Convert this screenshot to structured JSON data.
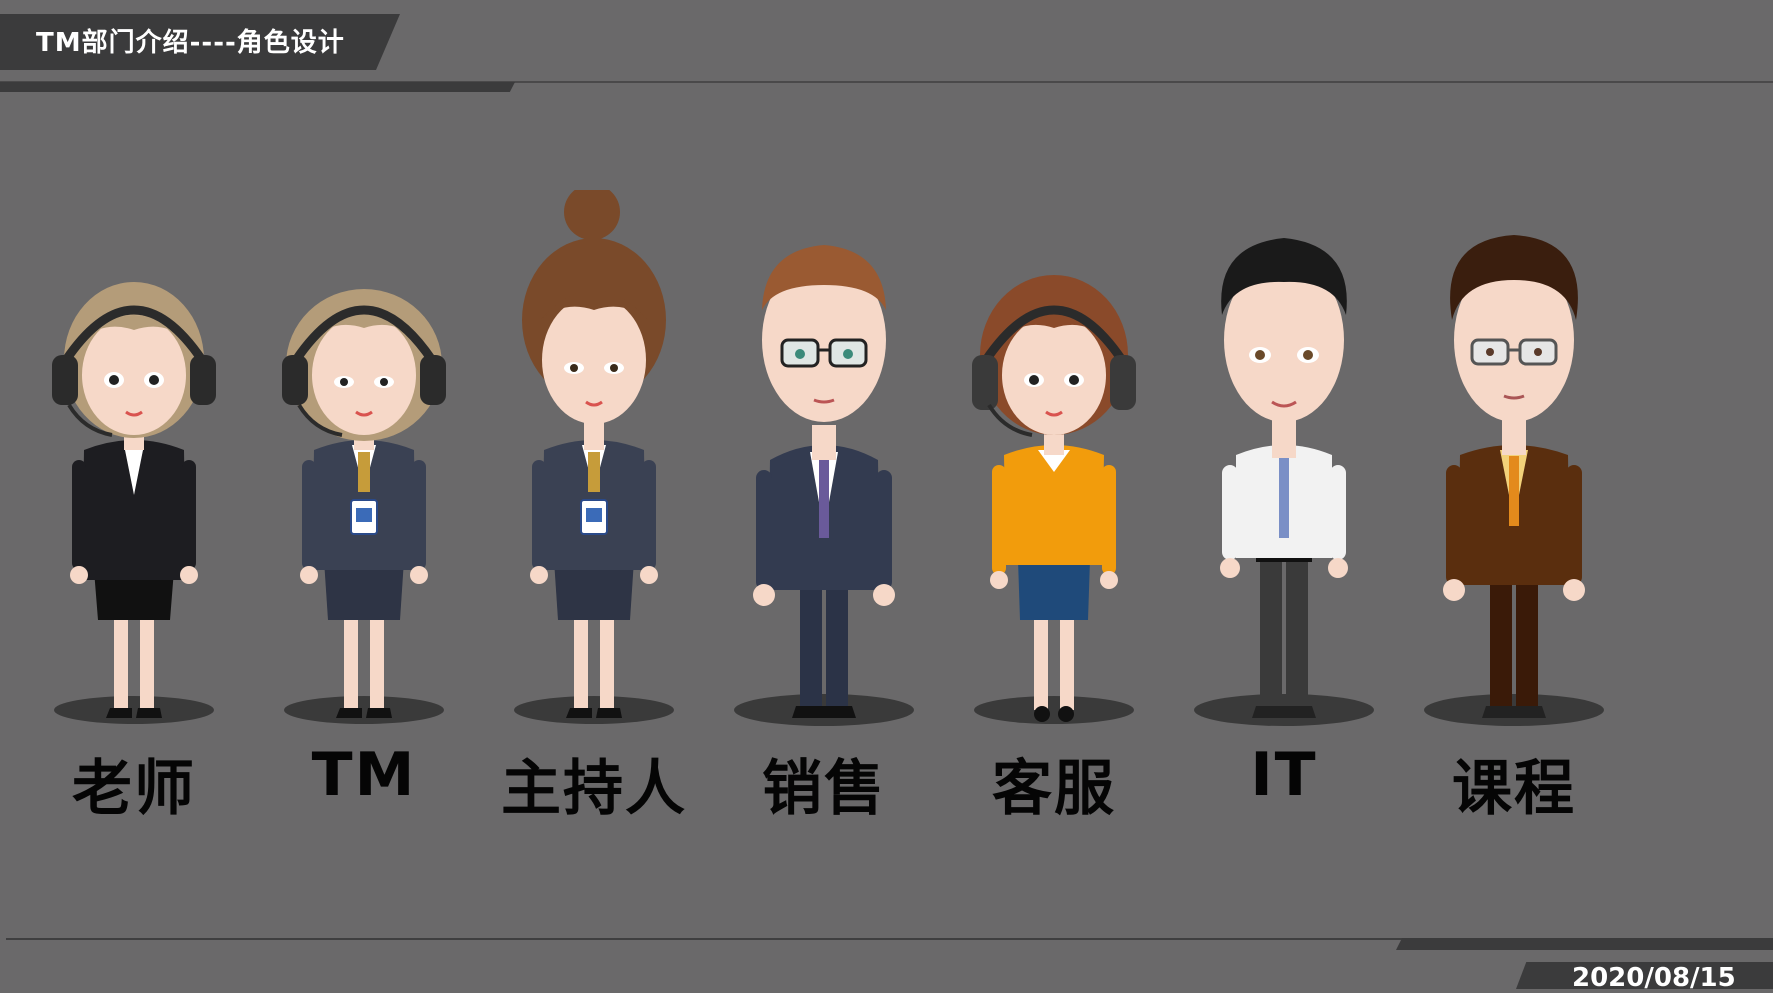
{
  "header": {
    "title": "TM部门介绍----角色设计"
  },
  "footer": {
    "date": "2020/08/15"
  },
  "characters": [
    {
      "label": "老师"
    },
    {
      "label": "TM"
    },
    {
      "label": "主持人"
    },
    {
      "label": "销售"
    },
    {
      "label": "客服"
    },
    {
      "label": "IT"
    },
    {
      "label": "课程"
    }
  ],
  "colors": {
    "background": "#6a696a",
    "tab": "#3b3b3c",
    "label": "#050505",
    "skin": "#f6d8c8"
  }
}
